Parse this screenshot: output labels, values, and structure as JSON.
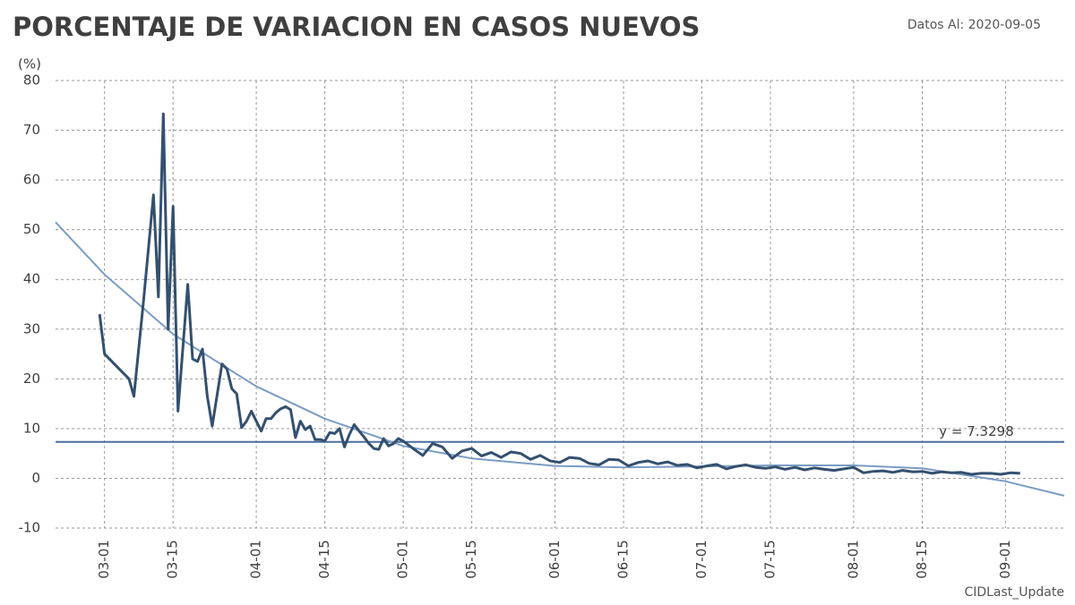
{
  "chart_data": {
    "type": "line",
    "title": "PORCENTAJE DE VARIACION EN CASOS NUEVOS",
    "subtitle": "Datos Al: 2020-09-05",
    "y_label": "(%)",
    "footer": "CIDLast_Update",
    "xlim": [
      "02-20",
      "09-13"
    ],
    "xticks": [
      "03-01",
      "03-15",
      "04-01",
      "04-15",
      "05-01",
      "05-15",
      "06-01",
      "06-15",
      "07-01",
      "07-15",
      "08-01",
      "08-15",
      "09-01"
    ],
    "ylim": [
      -10,
      80
    ],
    "yticks": [
      -10,
      0,
      10,
      20,
      30,
      40,
      50,
      60,
      70,
      80
    ],
    "grid": true,
    "series": [
      {
        "color": "#34506f",
        "x": [
          "02-29",
          "03-01",
          "03-06",
          "03-07",
          "03-09",
          "03-11",
          "03-12",
          "03-13",
          "03-14",
          "03-15",
          "03-16",
          "03-18",
          "03-19",
          "03-20",
          "03-21",
          "03-22",
          "03-23",
          "03-25",
          "03-26",
          "03-27",
          "03-28",
          "03-29",
          "03-30",
          "03-31",
          "04-02",
          "04-03",
          "04-04",
          "04-05",
          "04-06",
          "04-07",
          "04-08",
          "04-09",
          "04-10",
          "04-11",
          "04-12",
          "04-13",
          "04-14",
          "04-15",
          "04-16",
          "04-17",
          "04-18",
          "04-19",
          "04-20",
          "04-21",
          "04-22",
          "04-23",
          "04-24",
          "04-25",
          "04-26",
          "04-27",
          "04-28",
          "04-29",
          "04-30",
          "05-01",
          "05-03",
          "05-05",
          "05-07",
          "05-09",
          "05-11",
          "05-13",
          "05-15",
          "05-17",
          "05-19",
          "05-21",
          "05-23",
          "05-25",
          "05-27",
          "05-29",
          "05-31",
          "06-02",
          "06-04",
          "06-06",
          "06-08",
          "06-10",
          "06-12",
          "06-14",
          "06-16",
          "06-18",
          "06-20",
          "06-22",
          "06-24",
          "06-26",
          "06-28",
          "06-30",
          "07-02",
          "07-04",
          "07-06",
          "07-08",
          "07-10",
          "07-12",
          "07-14",
          "07-16",
          "07-18",
          "07-20",
          "07-22",
          "07-24",
          "07-26",
          "07-28",
          "07-30",
          "08-01",
          "08-03",
          "08-05",
          "08-07",
          "08-09",
          "08-11",
          "08-13",
          "08-15",
          "08-17",
          "08-19",
          "08-21",
          "08-23",
          "08-25",
          "08-27",
          "08-29",
          "08-31",
          "09-02",
          "09-04"
        ],
        "values": [
          33,
          25,
          20,
          16.5,
          36,
          57,
          36.5,
          73.3,
          30,
          54.7,
          13.5,
          39,
          24,
          23.5,
          26,
          16.5,
          10.5,
          23,
          22,
          18,
          17,
          10.2,
          11.5,
          13.5,
          9.5,
          12,
          12,
          13.2,
          14,
          14.4,
          13.8,
          8.2,
          11.5,
          9.8,
          10.5,
          7.8,
          7.8,
          7.5,
          9.2,
          9,
          10,
          6.3,
          8.8,
          10.8,
          9.5,
          8.3,
          7,
          6,
          5.8,
          8,
          6.5,
          7,
          8,
          7.5,
          6,
          4.6,
          7,
          6.3,
          4,
          5.5,
          6,
          4.5,
          5.2,
          4.2,
          5.3,
          5,
          3.8,
          4.6,
          3.5,
          3.2,
          4.2,
          4,
          3,
          2.7,
          3.8,
          3.7,
          2.5,
          3.2,
          3.5,
          2.9,
          3.3,
          2.6,
          2.8,
          2.1,
          2.5,
          2.8,
          1.9,
          2.4,
          2.7,
          2.2,
          2,
          2.3,
          1.8,
          2.2,
          1.7,
          2.1,
          1.8,
          1.6,
          1.9,
          2.2,
          1.1,
          1.4,
          1.5,
          1.2,
          1.6,
          1.3,
          1.4,
          1,
          1.3,
          1.1,
          1.2,
          0.8,
          1,
          1,
          0.8,
          1.1,
          1
        ]
      },
      {
        "color": "#7b9cc4",
        "x": [
          "02-20",
          "03-01",
          "03-15",
          "04-01",
          "04-15",
          "05-01",
          "05-15",
          "06-01",
          "06-15",
          "07-01",
          "07-15",
          "08-01",
          "08-15",
          "09-01",
          "09-13"
        ],
        "values": [
          51.5,
          41,
          29,
          18.5,
          12,
          6.5,
          4,
          2.5,
          2.2,
          2.4,
          2.6,
          2.6,
          2,
          -0.6,
          -3.5
        ]
      }
    ],
    "hline": {
      "value": 7.3298,
      "label": "y = 7.3298",
      "color": "#4a6fa0"
    }
  }
}
